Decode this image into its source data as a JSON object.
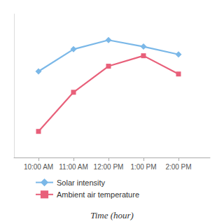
{
  "chart_data": {
    "type": "line",
    "xlabel": "Time (hour)",
    "x": [
      10,
      11,
      12,
      13,
      14
    ],
    "series": [
      {
        "name": "Solar intensity",
        "color": "#7BB8E8",
        "marker": "diamond",
        "values": [
          0.78,
          0.865,
          0.9,
          0.875,
          0.845
        ]
      },
      {
        "name": "Ambient air temperature",
        "color": "#E8607A",
        "marker": "square",
        "values": [
          0.55,
          0.7,
          0.8,
          0.84,
          0.77
        ]
      }
    ],
    "xlim": [
      9.3,
      14.9
    ],
    "xticks": [
      {
        "value": 10,
        "label": "10:00 AM"
      },
      {
        "value": 11,
        "label": "11:00 AM"
      },
      {
        "value": 12,
        "label": "12:00 PM"
      },
      {
        "value": 13,
        "label": "1:00 PM"
      },
      {
        "value": 14,
        "label": "2:00 PM"
      }
    ],
    "ylim": [
      0.45,
      1.0
    ],
    "tick_labels": "x",
    "grid": false,
    "legend": "bottom"
  }
}
